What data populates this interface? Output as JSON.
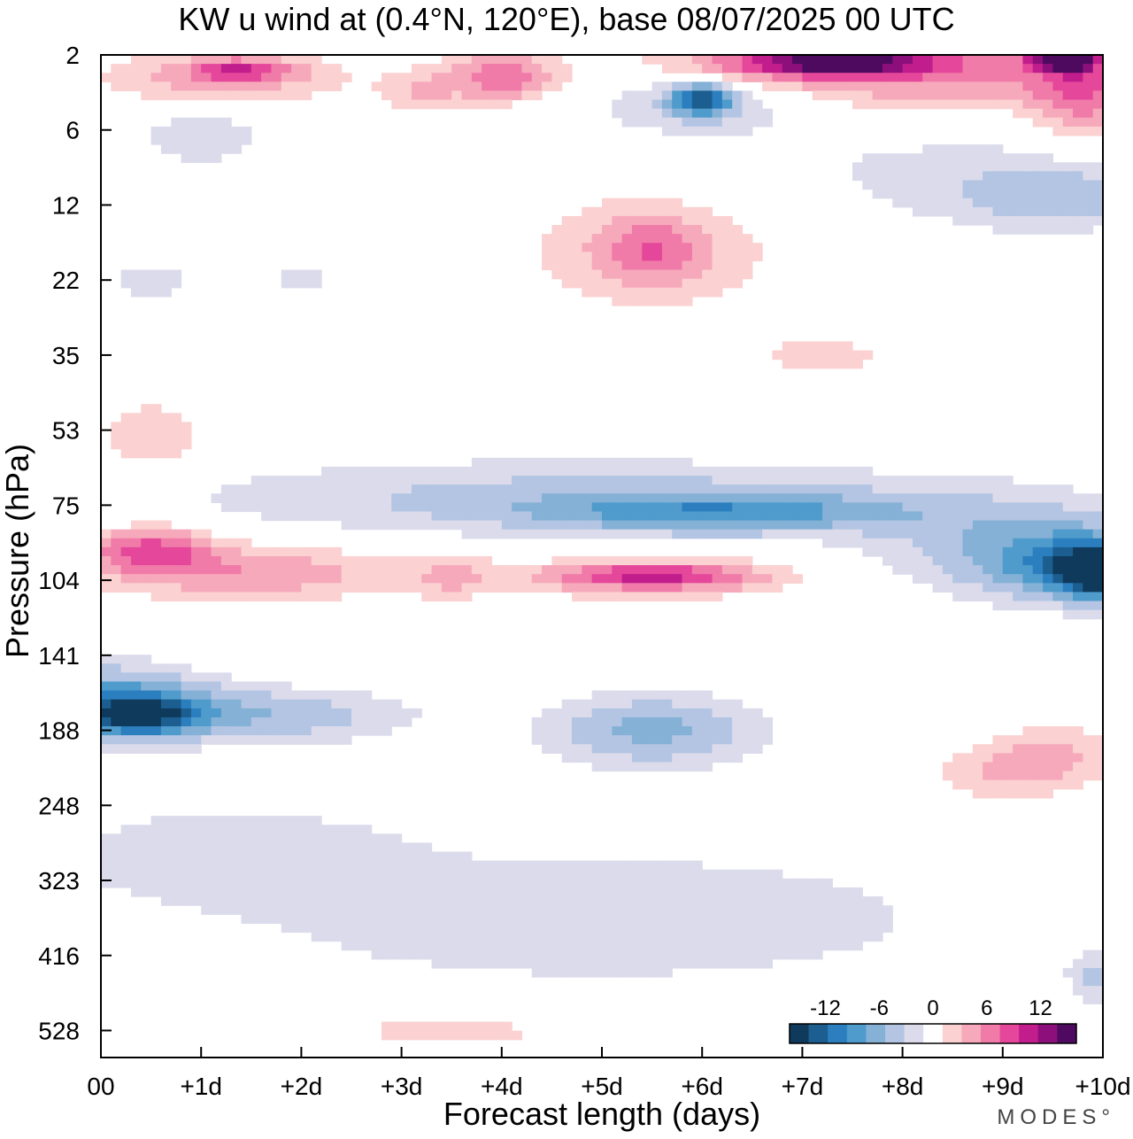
{
  "chart_data": {
    "type": "heatmap",
    "title": "KW u wind at (0.4°N, 120°E),  base 08/07/2025  00 UTC",
    "xlabel": "Forecast length (days)",
    "ylabel": "Pressure (hPa)",
    "x_ticks": [
      "00",
      "+1d",
      "+2d",
      "+3d",
      "+4d",
      "+5d",
      "+6d",
      "+7d",
      "+8d",
      "+9d",
      "+10d"
    ],
    "y_ticks": [
      "2",
      "6",
      "12",
      "22",
      "35",
      "53",
      "75",
      "104",
      "141",
      "188",
      "248",
      "323",
      "416",
      "528"
    ],
    "xlim": [
      0,
      10
    ],
    "ylim_levels": [
      0,
      13
    ],
    "colorbar": {
      "tick_labels": [
        "-12",
        "-6",
        "0",
        "6",
        "12"
      ],
      "tick_values": [
        -12,
        -6,
        0,
        6,
        12
      ],
      "range": [
        -16,
        16
      ],
      "colors": [
        "#0f3a5c",
        "#1b5e8f",
        "#2b7fbf",
        "#4e9bcc",
        "#85b1d6",
        "#b3c5e2",
        "#dbdbec",
        "#ffffff",
        "#fbd1d1",
        "#f6a9bb",
        "#f07aa8",
        "#e5479a",
        "#c11d8c",
        "#8c0f7c",
        "#4e0a5e"
      ]
    },
    "features": [
      {
        "x": 0.0,
        "y": 8.6,
        "rx": 1.0,
        "ry": 0.45,
        "v": -8
      },
      {
        "x": 0.4,
        "y": 8.8,
        "rx": 0.5,
        "ry": 0.25,
        "v": -10
      },
      {
        "x": 1.5,
        "y": 8.8,
        "rx": 1.5,
        "ry": 0.35,
        "v": -5
      },
      {
        "x": 0.5,
        "y": 6.6,
        "rx": 0.6,
        "ry": 0.3,
        "v": 8
      },
      {
        "x": 1.5,
        "y": 6.9,
        "rx": 1.4,
        "ry": 0.35,
        "v": 5
      },
      {
        "x": 5.5,
        "y": 6.95,
        "rx": 1.4,
        "ry": 0.3,
        "v": 4
      },
      {
        "x": 5.5,
        "y": 6.95,
        "rx": 0.9,
        "ry": 0.15,
        "v": 7
      },
      {
        "x": 3.5,
        "y": 6.95,
        "rx": 0.4,
        "ry": 0.3,
        "v": 3
      },
      {
        "x": 4.8,
        "y": 5.9,
        "rx": 3.8,
        "ry": 0.5,
        "v": -4
      },
      {
        "x": 6.2,
        "y": 6.1,
        "rx": 1.8,
        "ry": 0.25,
        "v": -7
      },
      {
        "x": 9.9,
        "y": 6.8,
        "rx": 1.0,
        "ry": 0.45,
        "v": -10
      },
      {
        "x": 10.0,
        "y": 6.9,
        "rx": 0.4,
        "ry": 0.3,
        "v": -13
      },
      {
        "x": 9.0,
        "y": 6.5,
        "rx": 1.3,
        "ry": 0.6,
        "v": -4
      },
      {
        "x": 5.0,
        "y": 11.5,
        "rx": 5.5,
        "ry": 1.4,
        "v": -2
      },
      {
        "x": 1.2,
        "y": 10.6,
        "rx": 1.6,
        "ry": 0.6,
        "v": -2
      },
      {
        "x": 5.5,
        "y": 9.0,
        "rx": 1.0,
        "ry": 0.45,
        "v": -6
      },
      {
        "x": 9.0,
        "y": 9.6,
        "rx": 0.8,
        "ry": 0.35,
        "v": 3
      },
      {
        "x": 0.5,
        "y": 5.1,
        "rx": 0.5,
        "ry": 0.5,
        "v": 3
      },
      {
        "x": 1.2,
        "y": 0.3,
        "rx": 1.2,
        "ry": 0.35,
        "v": 4
      },
      {
        "x": 1.4,
        "y": 0.2,
        "rx": 0.5,
        "ry": 0.15,
        "v": 7
      },
      {
        "x": 4.0,
        "y": 0.3,
        "rx": 0.5,
        "ry": 0.3,
        "v": 7
      },
      {
        "x": 3.2,
        "y": 0.5,
        "rx": 0.4,
        "ry": 0.3,
        "v": 3
      },
      {
        "x": 8.0,
        "y": 0.2,
        "rx": 2.5,
        "ry": 0.5,
        "v": 6
      },
      {
        "x": 7.3,
        "y": 0.1,
        "rx": 1.0,
        "ry": 0.2,
        "v": 12
      },
      {
        "x": 9.6,
        "y": 0.05,
        "rx": 0.3,
        "ry": 0.15,
        "v": 16
      },
      {
        "x": 9.8,
        "y": 0.5,
        "rx": 0.5,
        "ry": 0.6,
        "v": 6
      },
      {
        "x": 6.0,
        "y": 0.6,
        "rx": 1.2,
        "ry": 0.45,
        "v": -4
      },
      {
        "x": 6.0,
        "y": 0.6,
        "rx": 0.3,
        "ry": 0.2,
        "v": -12
      },
      {
        "x": 1.0,
        "y": 1.1,
        "rx": 0.6,
        "ry": 0.35,
        "v": -3
      },
      {
        "x": 5.5,
        "y": 2.6,
        "rx": 1.3,
        "ry": 0.8,
        "v": 3
      },
      {
        "x": 5.5,
        "y": 2.6,
        "rx": 0.5,
        "ry": 0.4,
        "v": 5
      },
      {
        "x": 8.5,
        "y": 1.6,
        "rx": 2.0,
        "ry": 0.7,
        "v": -2
      },
      {
        "x": 9.5,
        "y": 1.9,
        "rx": 0.9,
        "ry": 0.4,
        "v": -4
      },
      {
        "x": 0.5,
        "y": 3.0,
        "rx": 0.6,
        "ry": 0.35,
        "v": -2
      },
      {
        "x": 2.0,
        "y": 3.0,
        "rx": 0.4,
        "ry": 0.3,
        "v": -2
      },
      {
        "x": 9.5,
        "y": 9.3,
        "rx": 0.7,
        "ry": 0.4,
        "v": 3
      },
      {
        "x": 7.2,
        "y": 4.0,
        "rx": 0.6,
        "ry": 0.2,
        "v": 3
      },
      {
        "x": 3.5,
        "y": 13.0,
        "rx": 1.5,
        "ry": 0.15,
        "v": 3
      },
      {
        "x": 9.9,
        "y": 12.3,
        "rx": 0.2,
        "ry": 0.25,
        "v": -4
      }
    ]
  }
}
